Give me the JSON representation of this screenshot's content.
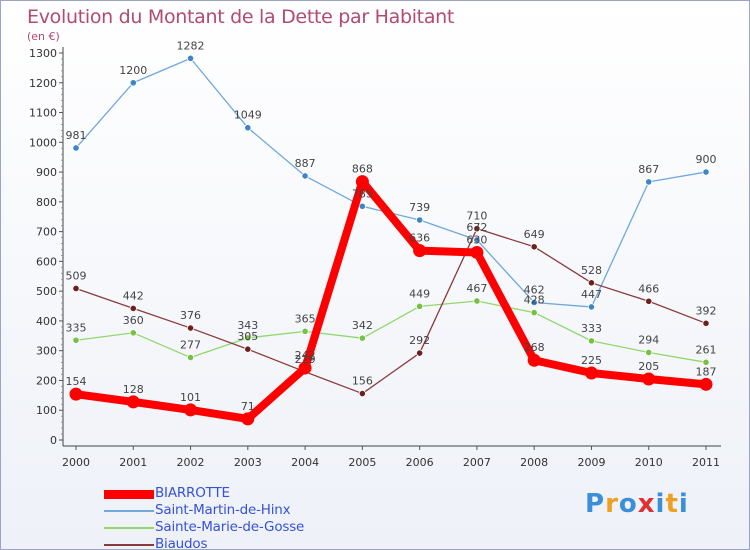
{
  "title": "Evolution du Montant de la Dette par Habitant",
  "unit_label": "(en €)",
  "logo": {
    "letters": [
      "P",
      "r",
      "o",
      "x",
      "i",
      "t",
      "i"
    ],
    "colors": [
      "#3a8fd8",
      "#f0a020",
      "#3a8fd8",
      "#e03030",
      "#3a8fd8",
      "#f0a020",
      "#3a8fd8"
    ]
  },
  "chart_data": {
    "type": "line",
    "x": [
      "2000",
      "2001",
      "2002",
      "2003",
      "2004",
      "2005",
      "2006",
      "2007",
      "2008",
      "2009",
      "2010",
      "2011"
    ],
    "ylim": [
      0,
      1300
    ],
    "yticks": [
      "0",
      "100",
      "200",
      "300",
      "400",
      "500",
      "600",
      "700",
      "800",
      "900",
      "1000",
      "1100",
      "1200",
      "1300"
    ],
    "grid": false,
    "legend_position": "bottom-left",
    "series": [
      {
        "name": "BIARROTTE",
        "color": "#ff0000",
        "marker": "#ff0000",
        "width": 8,
        "values": [
          154,
          128,
          101,
          71,
          242,
          868,
          636,
          630,
          268,
          225,
          205,
          187
        ],
        "labels": [
          "154",
          "128",
          "101",
          "71",
          "242",
          "868",
          "636",
          "630",
          "268",
          "225",
          "205",
          "187"
        ]
      },
      {
        "name": "Saint-Martin-de-Hinx",
        "color": "#6fa8dc",
        "marker": "#3d85c6",
        "width": 1.3,
        "values": [
          981,
          1200,
          1282,
          1049,
          887,
          785,
          739,
          672,
          462,
          447,
          867,
          900
        ],
        "labels": [
          "981",
          "1200",
          "1282",
          "1049",
          "887",
          "785",
          "739",
          "672",
          "462",
          "447",
          "867",
          "900"
        ]
      },
      {
        "name": "Sainte-Marie-de-Gosse",
        "color": "#93d66b",
        "marker": "#76c043",
        "width": 1.3,
        "values": [
          335,
          360,
          277,
          343,
          365,
          342,
          449,
          467,
          428,
          333,
          294,
          261
        ],
        "labels": [
          "335",
          "360",
          "277",
          "343",
          "365",
          "342",
          "449",
          "467",
          "428",
          "333",
          "294",
          "261"
        ]
      },
      {
        "name": "Biaudos",
        "color": "#8b3a3a",
        "marker": "#6b1f1f",
        "width": 1.3,
        "values": [
          509,
          442,
          376,
          305,
          229,
          156,
          292,
          710,
          649,
          528,
          466,
          392
        ],
        "labels": [
          "509",
          "442",
          "376",
          "305",
          "229",
          "156",
          "292",
          "710",
          "649",
          "528",
          "466",
          "392"
        ]
      }
    ]
  }
}
